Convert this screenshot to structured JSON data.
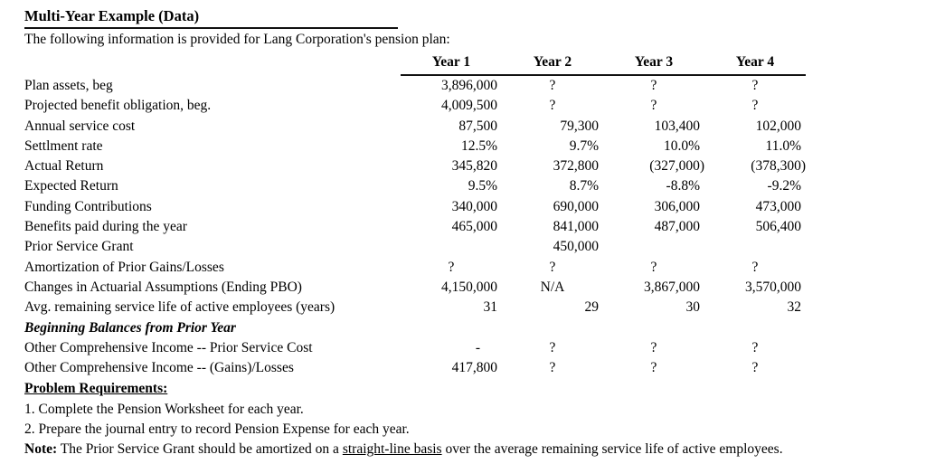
{
  "title": "Multi-Year Example (Data)",
  "subtitle": "The following information is provided for Lang Corporation's pension plan:",
  "table": {
    "columns": [
      "Year 1",
      "Year 2",
      "Year 3",
      "Year 4"
    ],
    "rows": [
      {
        "label": "Plan assets, beg",
        "values": [
          "3,896,000",
          "?",
          "?",
          "?"
        ]
      },
      {
        "label": "Projected benefit obligation, beg.",
        "values": [
          "4,009,500",
          "?",
          "?",
          "?"
        ]
      },
      {
        "label": "Annual service cost",
        "values": [
          "87,500",
          "79,300",
          "103,400",
          "102,000"
        ]
      },
      {
        "label": "Settlment rate",
        "values": [
          "12.5%",
          "9.7%",
          "10.0%",
          "11.0%"
        ]
      },
      {
        "label": "Actual Return",
        "values": [
          "345,820",
          "372,800",
          "(327,000)",
          "(378,300)"
        ]
      },
      {
        "label": "Expected Return",
        "values": [
          "9.5%",
          "8.7%",
          "-8.8%",
          "-9.2%"
        ]
      },
      {
        "label": "Funding Contributions",
        "values": [
          "340,000",
          "690,000",
          "306,000",
          "473,000"
        ]
      },
      {
        "label": "Benefits paid during the year",
        "values": [
          "465,000",
          "841,000",
          "487,000",
          "506,400"
        ]
      },
      {
        "label": "Prior Service Grant",
        "values": [
          "",
          "450,000",
          "",
          ""
        ]
      },
      {
        "label": "Amortization of Prior Gains/Losses",
        "values": [
          "?",
          "?",
          "?",
          "?"
        ]
      },
      {
        "label": "Changes in Actuarial Assumptions (Ending PBO)",
        "values": [
          "4,150,000",
          "N/A",
          "3,867,000",
          "3,570,000"
        ]
      },
      {
        "label": "Avg. remaining service life of active employees (years)",
        "values": [
          "31",
          "29",
          "30",
          "32"
        ]
      },
      {
        "label": "Beginning Balances from Prior Year",
        "emphasis": true,
        "values": [
          "",
          "",
          "",
          ""
        ]
      },
      {
        "label": "Other Comprehensive Income -- Prior Service Cost",
        "values": [
          "-",
          "?",
          "?",
          "?"
        ]
      },
      {
        "label": "Other Comprehensive Income -- (Gains)/Losses",
        "values": [
          "417,800",
          "?",
          "?",
          "?"
        ]
      }
    ]
  },
  "requirements": {
    "heading": "Problem Requirements:",
    "items": [
      "1. Complete the Pension Worksheet for each year.",
      "2. Prepare the journal entry to record Pension Expense for each year."
    ],
    "note": {
      "label": "Note:",
      "before_underline": " The Prior Service Grant should be amortized on a ",
      "underlined": "straight-line basis",
      "after_underline": " over the average remaining service life of active employees."
    }
  },
  "colors": {
    "text": "#000000",
    "background": "#ffffff",
    "rule": "#111111"
  }
}
